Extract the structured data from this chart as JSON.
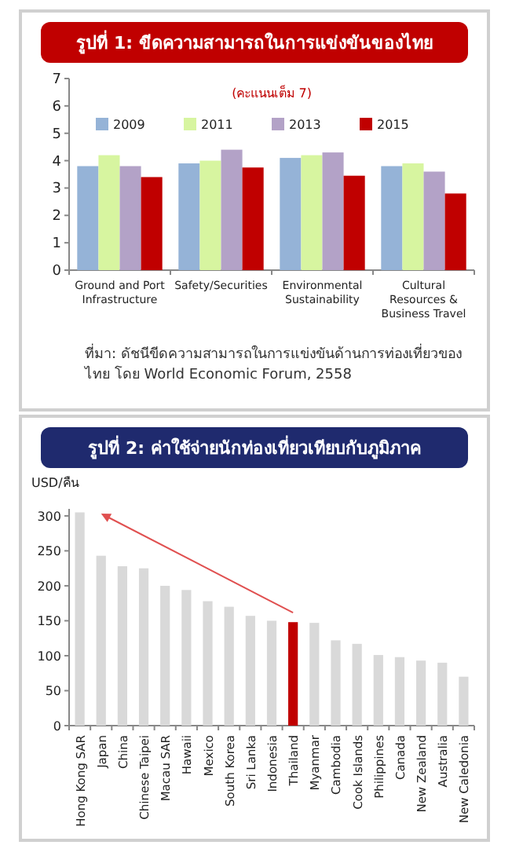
{
  "chart_data": [
    {
      "type": "bar",
      "title": "รูปที่ 1: ขีดความสามารถในการแข่งขันของไทย",
      "subtitle": "(คะแนนเต็ม 7)",
      "categories": [
        "Ground and Port Infrastructure",
        "Safety/Securities",
        "Environmental Sustainability",
        "Cultural Resources & Business Travel"
      ],
      "series": [
        {
          "name": "2009",
          "color": "#95b3d7",
          "values": [
            3.8,
            3.9,
            4.1,
            3.8
          ]
        },
        {
          "name": "2011",
          "color": "#d7f5a0",
          "values": [
            4.2,
            4.0,
            4.2,
            3.9
          ]
        },
        {
          "name": "2013",
          "color": "#b3a2c7",
          "values": [
            3.8,
            4.4,
            4.3,
            3.6
          ]
        },
        {
          "name": "2015",
          "color": "#c00000",
          "values": [
            3.4,
            3.75,
            3.45,
            2.8
          ]
        }
      ],
      "ylim": [
        0,
        7
      ],
      "yticks": [
        0,
        1,
        2,
        3,
        4,
        5,
        6,
        7
      ],
      "legend": "top",
      "grid": false,
      "annotations": [
        "ที่มา: ดัชนีขีดความสามารถในการแข่งขันด้านการท่องเที่ยวของไทย โดย World Economic Forum, 2558"
      ]
    },
    {
      "type": "bar",
      "title": "รูปที่ 2: ค่าใช้จ่ายนักท่องเที่ยวเทียบกับภูมิภาค",
      "ylabel": "USD/คืน",
      "categories": [
        "Hong Kong SAR",
        "Japan",
        "China",
        "Chinese Taipei",
        "Macau SAR",
        "Hawaii",
        "Mexico",
        "South Korea",
        "Sri Lanka",
        "Indonesia",
        "Thailand",
        "Myanmar",
        "Cambodia",
        "Cook Islands",
        "Philippines",
        "Canada",
        "New Zealand",
        "Australia",
        "New Caledonia"
      ],
      "values": [
        305,
        243,
        228,
        225,
        200,
        194,
        178,
        170,
        157,
        150,
        148,
        147,
        122,
        117,
        101,
        98,
        93,
        90,
        70
      ],
      "colors": [
        "#d9d9d9",
        "#d9d9d9",
        "#d9d9d9",
        "#d9d9d9",
        "#d9d9d9",
        "#d9d9d9",
        "#d9d9d9",
        "#d9d9d9",
        "#d9d9d9",
        "#d9d9d9",
        "#c00000",
        "#d9d9d9",
        "#d9d9d9",
        "#d9d9d9",
        "#d9d9d9",
        "#d9d9d9",
        "#d9d9d9",
        "#d9d9d9",
        "#d9d9d9"
      ],
      "ylim": [
        0,
        310
      ],
      "yticks": [
        0,
        50,
        100,
        150,
        200,
        250,
        300
      ],
      "grid": false
    }
  ]
}
